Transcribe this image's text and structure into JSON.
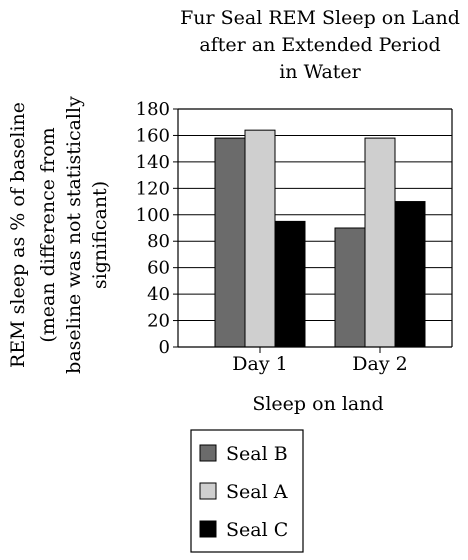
{
  "chart_data": {
    "type": "bar",
    "title_lines": [
      "Fur Seal REM Sleep on Land",
      "after an Extended Period",
      "in Water"
    ],
    "ylabel_lines": [
      "REM sleep as % of baseline",
      "(mean difference from",
      "baseline was not statistically",
      "significant)"
    ],
    "xlabel": "Sleep on land",
    "categories": [
      "Day 1",
      "Day 2"
    ],
    "ylim": [
      0,
      180
    ],
    "yticks": [
      0,
      20,
      40,
      60,
      80,
      100,
      120,
      140,
      160,
      180
    ],
    "grid": true,
    "legend_placement": "bottom",
    "series": [
      {
        "name": "Seal B",
        "color": "#6b6b6b",
        "values": [
          158,
          90
        ]
      },
      {
        "name": "Seal A",
        "color": "#cfcfcf",
        "values": [
          164,
          158
        ]
      },
      {
        "name": "Seal C",
        "color": "#000000",
        "values": [
          95,
          110
        ]
      }
    ]
  }
}
